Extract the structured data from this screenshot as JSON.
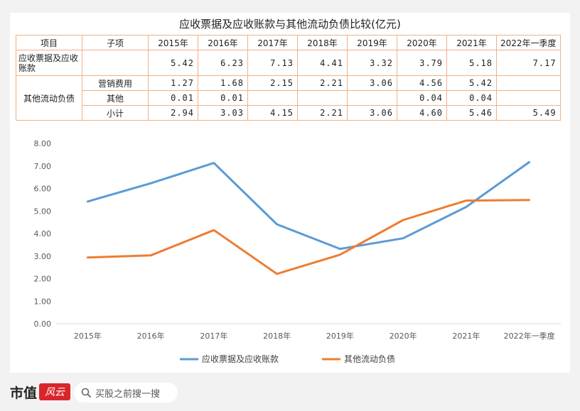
{
  "table": {
    "title": "应收票据及应收账款与其他流动负债比较(亿元)",
    "headers": [
      "项目",
      "子项",
      "2015年",
      "2016年",
      "2017年",
      "2018年",
      "2019年",
      "2020年",
      "2021年",
      "2022年一季度"
    ],
    "row1": {
      "item": "应收票据及应收账款",
      "values": [
        "5.42",
        "6.23",
        "7.13",
        "4.41",
        "3.32",
        "3.79",
        "5.18",
        "7.17"
      ]
    },
    "group_label": "其他流动负债",
    "sub_rows": [
      {
        "sub": "营销费用",
        "values": [
          "1.27",
          "1.68",
          "2.15",
          "2.21",
          "3.06",
          "4.56",
          "5.42",
          ""
        ]
      },
      {
        "sub": "其他",
        "values": [
          "0.01",
          "0.01",
          "",
          "",
          "",
          "0.04",
          "0.04",
          ""
        ]
      },
      {
        "sub": "小计",
        "values": [
          "2.94",
          "3.03",
          "4.15",
          "2.21",
          "3.06",
          "4.60",
          "5.46",
          "5.49"
        ]
      }
    ]
  },
  "chart_data": {
    "type": "line",
    "categories": [
      "2015年",
      "2016年",
      "2017年",
      "2018年",
      "2019年",
      "2020年",
      "2021年",
      "2022年一季度"
    ],
    "series": [
      {
        "name": "应收票据及应收账款",
        "color": "#5b9bd5",
        "values": [
          5.42,
          6.23,
          7.13,
          4.41,
          3.32,
          3.79,
          5.18,
          7.17
        ]
      },
      {
        "name": "其他流动负债",
        "color": "#ed7d31",
        "values": [
          2.94,
          3.03,
          4.15,
          2.21,
          3.06,
          4.6,
          5.46,
          5.49
        ]
      }
    ],
    "y_ticks": [
      "0.00",
      "1.00",
      "2.00",
      "3.00",
      "4.00",
      "5.00",
      "6.00",
      "7.00",
      "8.00"
    ],
    "ylim": [
      0,
      8
    ],
    "grid": false,
    "legend": "bottom"
  },
  "footer": {
    "brand": "市值",
    "brand_logo": "风云",
    "search_placeholder": "买股之前搜一搜"
  }
}
